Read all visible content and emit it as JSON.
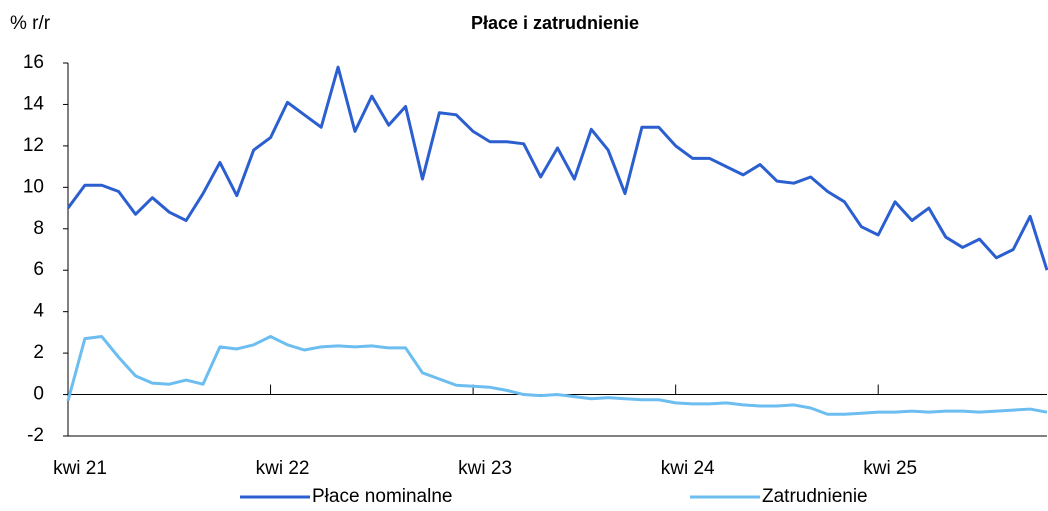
{
  "chart_data": {
    "type": "line",
    "title": "Płace i zatrudnienie",
    "y_label": "% r/r",
    "x": [
      0,
      1,
      2,
      3,
      4,
      5,
      6,
      7,
      8,
      9,
      10,
      11,
      12,
      13,
      14,
      15,
      16,
      17,
      18,
      19,
      20,
      21,
      22,
      23,
      24,
      25,
      26,
      27,
      28,
      29,
      30,
      31,
      32,
      33,
      34,
      35,
      36,
      37,
      38,
      39,
      40,
      41,
      42,
      43,
      44,
      45,
      46,
      47,
      48,
      49,
      50,
      51,
      52,
      53,
      54,
      55,
      56,
      57,
      58
    ],
    "xlim": [
      0,
      58
    ],
    "xticks": [
      {
        "value": 0,
        "label": "kwi 21"
      },
      {
        "value": 12,
        "label": "kwi 22"
      },
      {
        "value": 24,
        "label": "kwi 23"
      },
      {
        "value": 36,
        "label": "kwi 24"
      },
      {
        "value": 48,
        "label": "kwi 25"
      }
    ],
    "ylim": [
      -2,
      16
    ],
    "yticks": [
      -2,
      0,
      2,
      4,
      6,
      8,
      10,
      12,
      14,
      16
    ],
    "legend": "bottom",
    "series": [
      {
        "name": "Płace nominalne",
        "color": "#2b5fd0",
        "values": [
          9.0,
          10.1,
          10.1,
          9.8,
          8.7,
          9.5,
          8.8,
          8.4,
          9.7,
          11.2,
          9.6,
          11.8,
          12.4,
          14.1,
          13.5,
          12.9,
          15.8,
          12.7,
          14.4,
          13.0,
          13.9,
          10.4,
          13.6,
          13.5,
          12.7,
          12.2,
          12.2,
          12.1,
          10.5,
          11.9,
          10.4,
          12.8,
          11.8,
          9.7,
          12.9,
          12.9,
          12.0,
          11.4,
          11.4,
          11.0,
          10.6,
          11.1,
          10.3,
          10.2,
          10.5,
          9.8,
          9.3,
          8.1,
          7.7,
          9.3,
          8.4,
          9.0,
          7.6,
          7.1,
          7.5,
          6.6,
          7.0,
          8.6,
          6.0
        ]
      },
      {
        "name": "Zatrudnienie",
        "color": "#6cbdf0",
        "values": [
          -0.3,
          2.7,
          2.8,
          1.8,
          0.9,
          0.55,
          0.5,
          0.7,
          0.5,
          2.3,
          2.2,
          2.4,
          2.8,
          2.4,
          2.15,
          2.3,
          2.35,
          2.3,
          2.35,
          2.25,
          2.25,
          1.05,
          0.75,
          0.45,
          0.4,
          0.35,
          0.2,
          0.0,
          -0.05,
          0.0,
          -0.1,
          -0.2,
          -0.15,
          -0.2,
          -0.25,
          -0.25,
          -0.4,
          -0.45,
          -0.45,
          -0.4,
          -0.5,
          -0.55,
          -0.55,
          -0.5,
          -0.65,
          -0.95,
          -0.95,
          -0.9,
          -0.85,
          -0.85,
          -0.8,
          -0.85,
          -0.8,
          -0.8,
          -0.85,
          -0.8,
          -0.75,
          -0.7,
          -0.85
        ]
      }
    ]
  }
}
